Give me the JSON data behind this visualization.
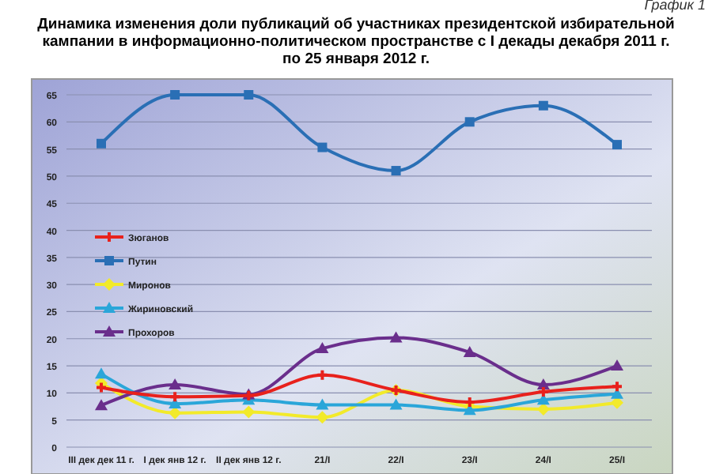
{
  "chart_data": {
    "type": "line",
    "title": "Динамика изменения доли публикаций об участниках президентской избирательной кампании в информационно-политическом пространстве с I декады декабря 2011 г. по 25 января 2012 г.",
    "annotations": [
      "График 1"
    ],
    "categories": [
      "III дек дек 11 г.",
      "I дек янв 12 г.",
      "II дек янв 12 г.",
      "21/I",
      "22/I",
      "23/I",
      "24/I",
      "25/I"
    ],
    "ylim": [
      0,
      65
    ],
    "yticks": [
      0,
      5,
      10,
      15,
      20,
      25,
      30,
      35,
      40,
      45,
      50,
      55,
      60,
      65
    ],
    "grid": "y",
    "legend": "left",
    "line_style": "solid",
    "series": [
      {
        "name": "Зюганов",
        "color": "#e8211c",
        "marker": "cross",
        "values": [
          11,
          9.3,
          9.5,
          13.3,
          10.5,
          8.3,
          10.2,
          11.2
        ]
      },
      {
        "name": "Путин",
        "color": "#2a6fb5",
        "marker": "square",
        "values": [
          56,
          65,
          65,
          55.3,
          51,
          60,
          63,
          55.8
        ]
      },
      {
        "name": "Миронов",
        "color": "#f2ea2a",
        "marker": "diamond",
        "values": [
          11.8,
          6.3,
          6.5,
          5.5,
          10.5,
          7.5,
          7,
          8.2
        ]
      },
      {
        "name": "Жириновский",
        "color": "#2aa6d9",
        "marker": "triangle",
        "values": [
          13.5,
          8,
          8.7,
          7.8,
          7.8,
          6.8,
          8.7,
          9.8
        ]
      },
      {
        "name": "Прохоров",
        "color": "#6a2e8c",
        "marker": "triangle",
        "values": [
          7.7,
          11.5,
          9.7,
          18.2,
          20.2,
          17.5,
          11.5,
          15
        ]
      }
    ]
  }
}
